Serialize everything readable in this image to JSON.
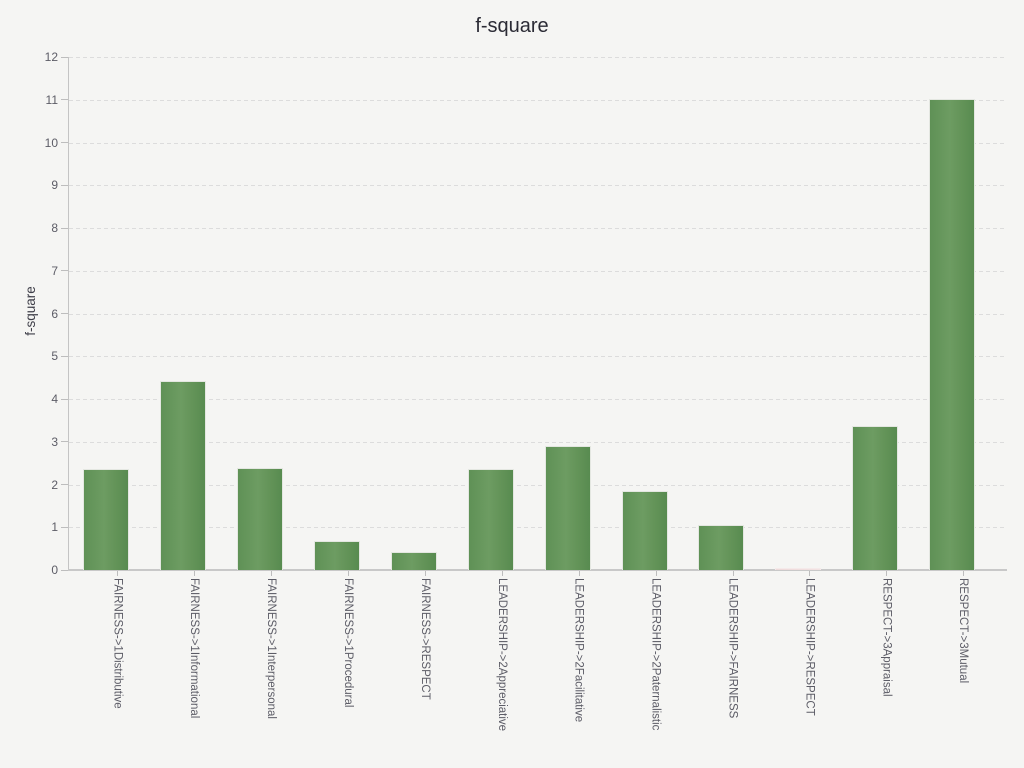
{
  "chart": {
    "title": "f-square",
    "y_axis_label": "f-square"
  },
  "chart_data": {
    "type": "bar",
    "title": "f-square",
    "xlabel": "",
    "ylabel": "f-square",
    "ylim": [
      0,
      12
    ],
    "y_tick_interval": 1,
    "y_tick_labels": [
      "0",
      "1",
      "2",
      "3",
      "4",
      "5",
      "6",
      "7",
      "8",
      "9",
      "10",
      "11",
      "12"
    ],
    "grid": "horizontal-dashed",
    "legend_position": "none",
    "categories": [
      "FAIRNESS->1Distributive",
      "FAIRNESS->1Informational",
      "FAIRNESS->1Interpersonal",
      "FAIRNESS->1Procedural",
      "FAIRNESS->RESPECT",
      "LEADERSHIP->2Appreciative",
      "LEADERSHIP->2Facilitative",
      "LEADERSHIP->2Paternalistic",
      "LEADERSHIP->FAIRNESS",
      "LEADERSHIP->RESPECT",
      "RESPECT->3Appraisal",
      "RESPECT->3Mutual"
    ],
    "values": [
      2.36,
      4.43,
      2.39,
      0.68,
      0.41,
      2.36,
      2.9,
      1.84,
      1.05,
      0.02,
      3.37,
      11.02
    ],
    "bar_color_default": "#639559",
    "bar_color_overrides": {
      "9": "#f0dddd"
    }
  },
  "style": {
    "background": "#f5f5f3",
    "title_color": "#2b2b35",
    "axis_line_color": "#c6c6c6",
    "gridline_color": "#dcdcdc",
    "tick_label_color": "#5c5c66",
    "bar_green": "#639559",
    "bar_pink": "#f0dddd"
  }
}
